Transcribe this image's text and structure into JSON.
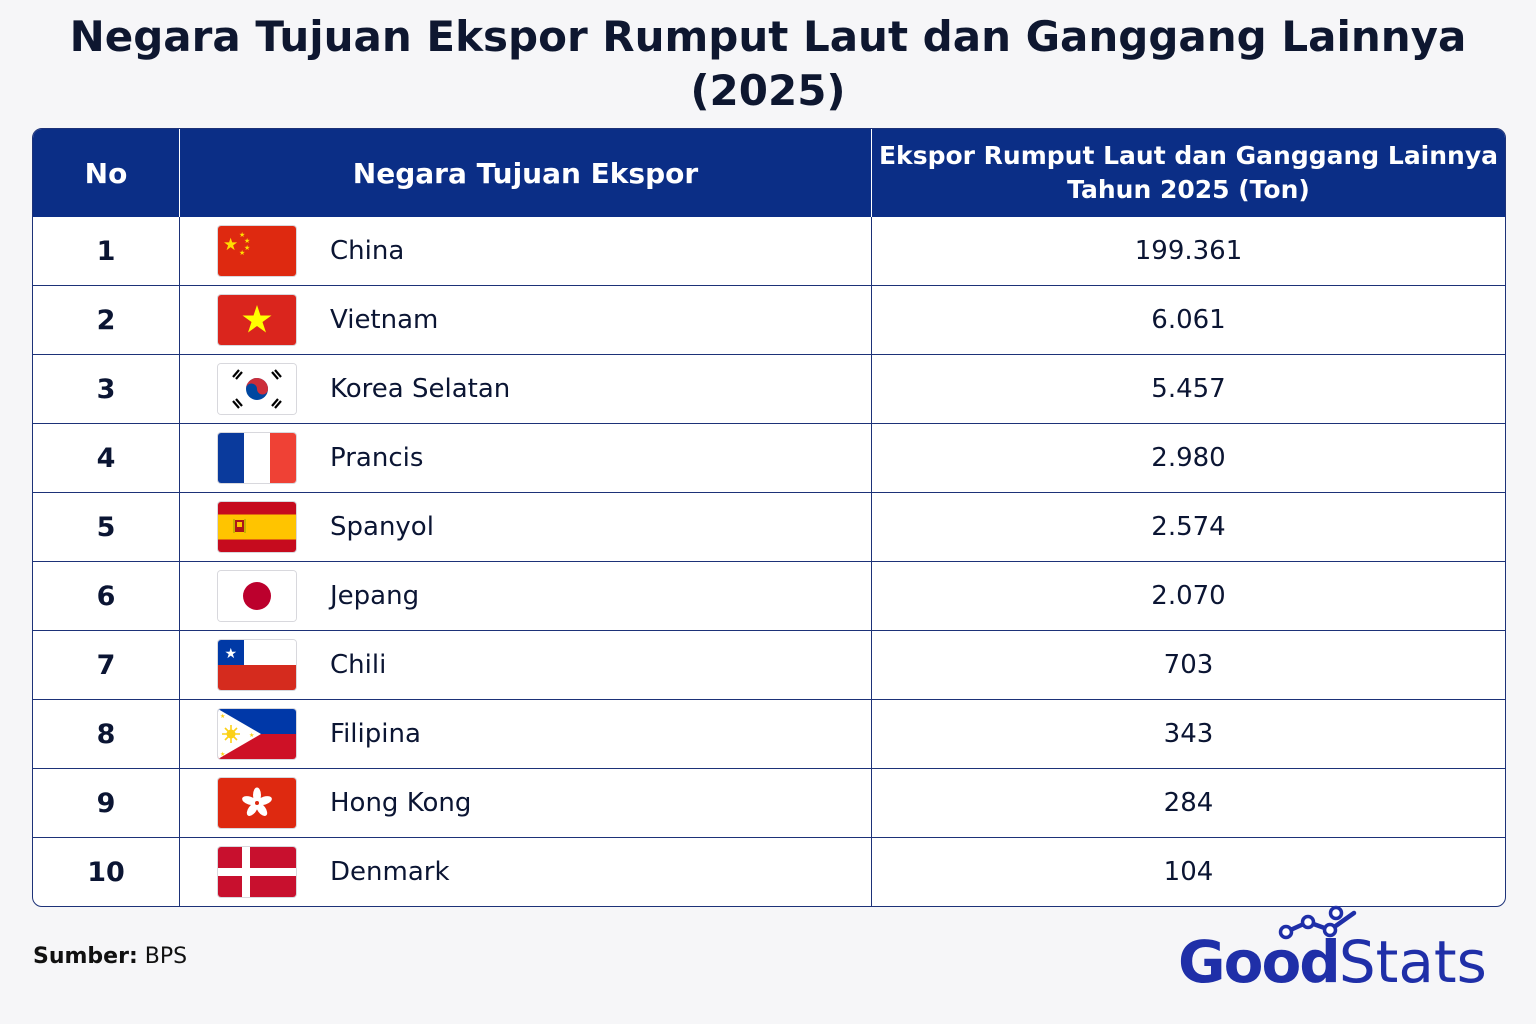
{
  "title_line1": "Negara Tujuan Ekspor Rumput Laut dan Ganggang Lainnya",
  "title_line2": "(2025)",
  "headers": {
    "no": "No",
    "country": "Negara Tujuan Ekspor",
    "value_line1": "Ekspor Rumput Laut dan Ganggang Lainnya",
    "value_line2": "Tahun 2025 (Ton)"
  },
  "chart_data": {
    "type": "table",
    "title": "Negara Tujuan Ekspor Rumput Laut dan Ganggang Lainnya (2025)",
    "columns": [
      "No",
      "Negara Tujuan Ekspor",
      "Ekspor Rumput Laut dan Ganggang Lainnya Tahun 2025 (Ton)"
    ],
    "rows": [
      {
        "no": "1",
        "country": "China",
        "flag": "china-flag-icon",
        "value": "199.361"
      },
      {
        "no": "2",
        "country": "Vietnam",
        "flag": "vietnam-flag-icon",
        "value": "6.061"
      },
      {
        "no": "3",
        "country": "Korea Selatan",
        "flag": "south-korea-flag-icon",
        "value": "5.457"
      },
      {
        "no": "4",
        "country": "Prancis",
        "flag": "france-flag-icon",
        "value": "2.980"
      },
      {
        "no": "5",
        "country": "Spanyol",
        "flag": "spain-flag-icon",
        "value": "2.574"
      },
      {
        "no": "6",
        "country": "Jepang",
        "flag": "japan-flag-icon",
        "value": "2.070"
      },
      {
        "no": "7",
        "country": "Chili",
        "flag": "chile-flag-icon",
        "value": "703"
      },
      {
        "no": "8",
        "country": "Filipina",
        "flag": "philippines-flag-icon",
        "value": "343"
      },
      {
        "no": "9",
        "country": "Hong Kong",
        "flag": "hong-kong-flag-icon",
        "value": "284"
      },
      {
        "no": "10",
        "country": "Denmark",
        "flag": "denmark-flag-icon",
        "value": "104"
      }
    ]
  },
  "source": {
    "label": "Sumber:",
    "value": "BPS"
  },
  "logo": {
    "bold": "Good",
    "light": "Stats"
  },
  "colors": {
    "header_bg": "#0b2e86",
    "border": "#1d3278",
    "logo": "#1f2fa8"
  }
}
